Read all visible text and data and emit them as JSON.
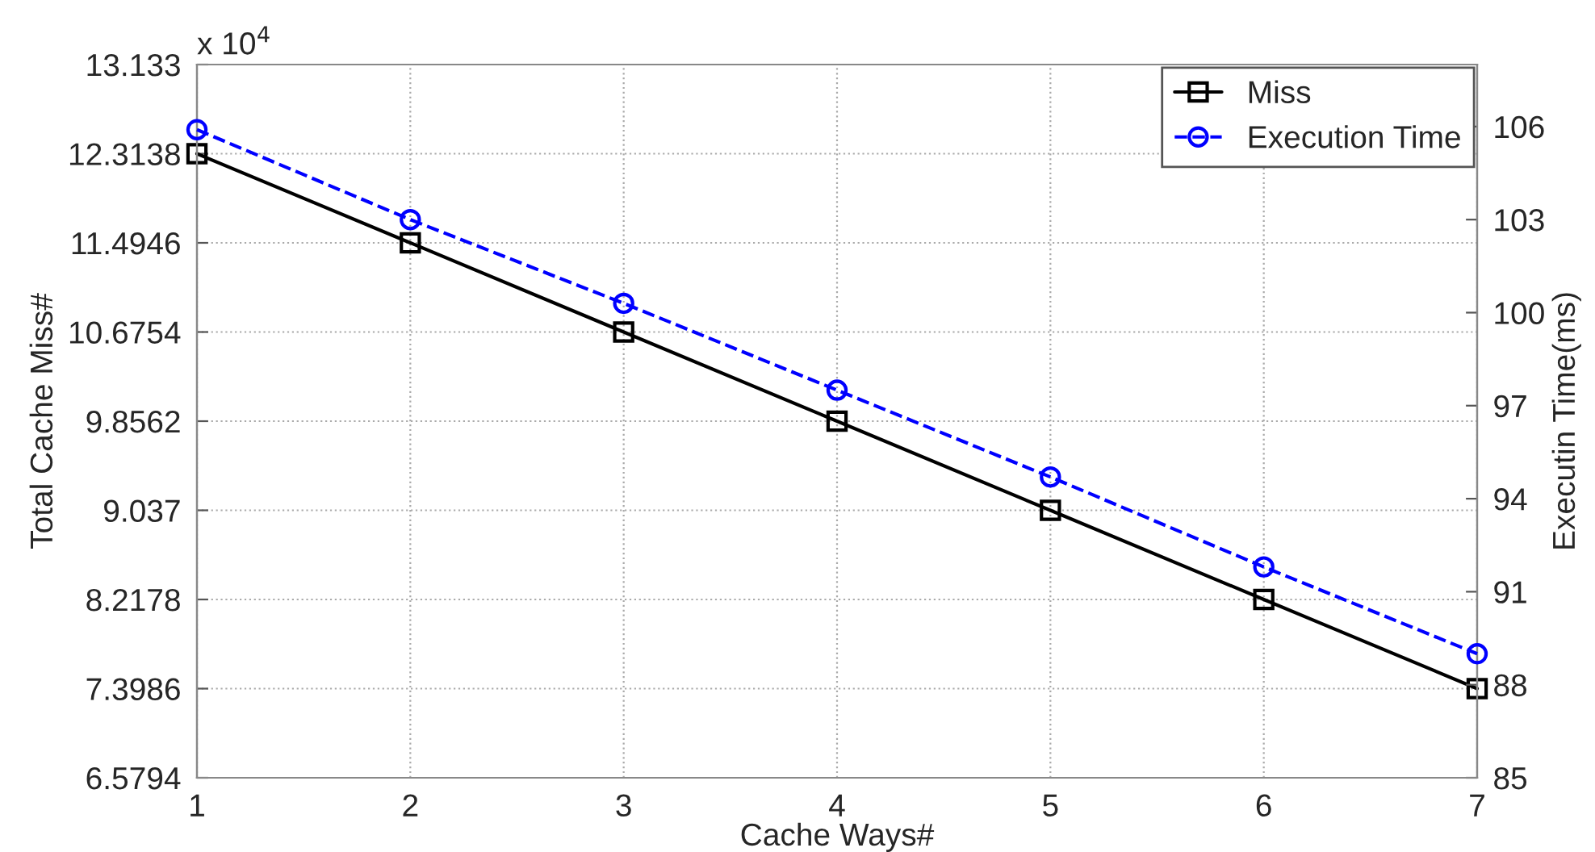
{
  "chart_data": {
    "type": "line",
    "xlabel": "Cache Ways#",
    "ylabel": "Total Cache Miss#",
    "y2label": "Executin Time(ms)",
    "x": [
      1,
      2,
      3,
      4,
      5,
      6,
      7
    ],
    "series": [
      {
        "name": "Miss",
        "color": "#000000",
        "values": [
          12.3138,
          11.4946,
          10.6754,
          9.8562,
          9.037,
          8.2178,
          7.3986
        ],
        "marker": "square",
        "line_style": "solid"
      },
      {
        "name": "Execution Time",
        "color": "#0000ff",
        "values": [
          105.9,
          103.0,
          100.3,
          97.5,
          94.7,
          91.8,
          89.0
        ],
        "marker": "circle",
        "line_style": "dashed",
        "axis": "y2"
      }
    ],
    "xlim": [
      1,
      7
    ],
    "xticks": [
      1,
      2,
      3,
      4,
      5,
      6,
      7
    ],
    "ylim": [
      6.5794,
      13.133
    ],
    "yticks": [
      6.5794,
      7.3986,
      8.2178,
      9.037,
      9.8562,
      10.6754,
      11.4946,
      12.3138,
      13.133
    ],
    "y2lim": [
      85,
      108
    ],
    "y2ticks": [
      85,
      88,
      91,
      94,
      97,
      100,
      103,
      106
    ],
    "annotations": [
      "x 10$^{4}$"
    ],
    "grid": true,
    "legend": "top right"
  }
}
